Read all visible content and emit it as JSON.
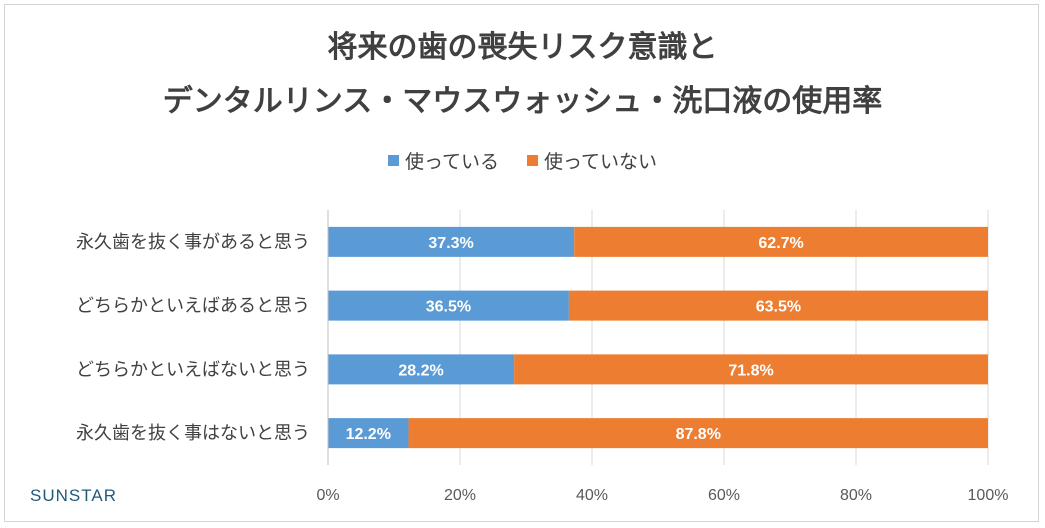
{
  "chart_data": {
    "type": "bar",
    "orientation": "horizontal",
    "stacked": true,
    "title_lines": [
      "将来の歯の喪失リスク意識と",
      "デンタルリンス・マウスウォッシュ・洗口液の使用率"
    ],
    "categories": [
      "永久歯を抜く事があると思う",
      "どちらかといえばあると思う",
      "どちらかといえばないと思う",
      "永久歯を抜く事はないと思う"
    ],
    "series": [
      {
        "name": "使っている",
        "color": "#5b9bd5",
        "values": [
          37.3,
          36.5,
          28.2,
          12.2
        ],
        "labels": [
          "37.3%",
          "36.5%",
          "28.2%",
          "12.2%"
        ]
      },
      {
        "name": "使っていない",
        "color": "#ed7d31",
        "values": [
          62.7,
          63.5,
          71.8,
          87.8
        ],
        "labels": [
          "62.7%",
          "63.5%",
          "71.8%",
          "87.8%"
        ]
      }
    ],
    "xlim": [
      0,
      100
    ],
    "x_ticks": [
      "0%",
      "20%",
      "40%",
      "60%",
      "80%",
      "100%"
    ],
    "grid": true,
    "legend_position": "top"
  },
  "brand": {
    "logo_text": "SUNSTAR",
    "logo_color": "#1f5a7a"
  }
}
